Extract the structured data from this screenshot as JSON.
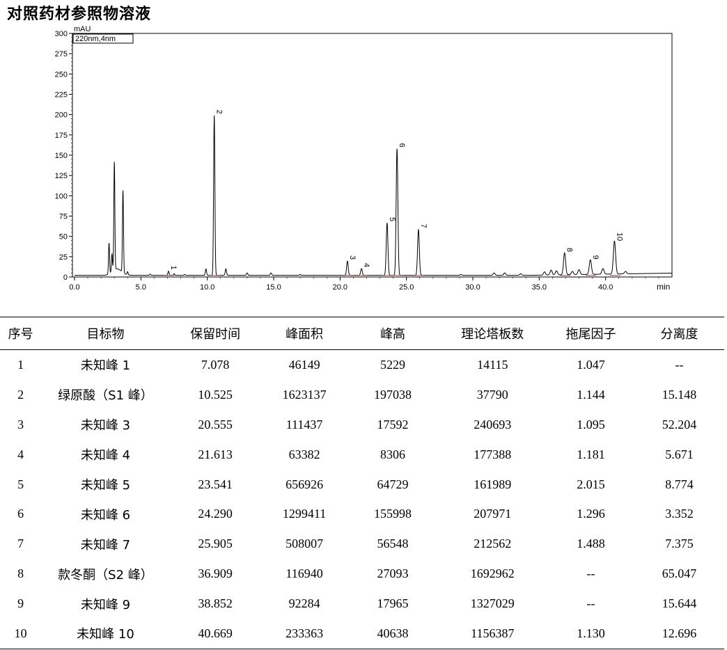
{
  "title": "对照药材参照物溶液",
  "chart_data": {
    "type": "line",
    "ylabel": "mAU",
    "xlabel": "min",
    "legend": "220nm,4nm",
    "xlim": [
      0.0,
      45.0
    ],
    "ylim": [
      0,
      300
    ],
    "xticks": [
      "0.0",
      "5.0",
      "10.0",
      "15.0",
      "20.0",
      "25.0",
      "30.0",
      "35.0",
      "40.0"
    ],
    "xtick_values": [
      0,
      5,
      10,
      15,
      20,
      25,
      30,
      35,
      40
    ],
    "yticks": [
      "0",
      "25",
      "50",
      "75",
      "100",
      "125",
      "150",
      "175",
      "200",
      "225",
      "250",
      "275",
      "300"
    ],
    "ytick_values": [
      0,
      25,
      50,
      75,
      100,
      125,
      150,
      175,
      200,
      225,
      250,
      275,
      300
    ],
    "baseline": 2,
    "labeled_peaks": [
      {
        "label": "1",
        "rt": 7.078,
        "height": 5.2
      },
      {
        "label": "2",
        "rt": 10.525,
        "height": 197.0
      },
      {
        "label": "3",
        "rt": 20.555,
        "height": 17.6
      },
      {
        "label": "4",
        "rt": 21.613,
        "height": 8.3
      },
      {
        "label": "5",
        "rt": 23.541,
        "height": 64.7
      },
      {
        "label": "6",
        "rt": 24.29,
        "height": 156.0
      },
      {
        "label": "7",
        "rt": 25.905,
        "height": 56.5
      },
      {
        "label": "8",
        "rt": 36.909,
        "height": 27.1
      },
      {
        "label": "9",
        "rt": 38.852,
        "height": 18.0
      },
      {
        "label": "10",
        "rt": 40.669,
        "height": 40.6
      }
    ],
    "other_peaks": [
      {
        "rt": 2.6,
        "height": 38
      },
      {
        "rt": 2.82,
        "height": 22
      },
      {
        "rt": 3.0,
        "height": 133
      },
      {
        "rt": 3.65,
        "height": 101
      },
      {
        "rt": 4.0,
        "height": 4
      },
      {
        "rt": 5.7,
        "height": 1.5
      },
      {
        "rt": 7.5,
        "height": 2
      },
      {
        "rt": 8.3,
        "height": 1
      },
      {
        "rt": 9.9,
        "height": 8
      },
      {
        "rt": 11.4,
        "height": 8
      },
      {
        "rt": 13.0,
        "height": 3
      },
      {
        "rt": 14.8,
        "height": 3
      },
      {
        "rt": 17.0,
        "height": 1
      },
      {
        "rt": 29.1,
        "height": 1
      },
      {
        "rt": 31.6,
        "height": 3
      },
      {
        "rt": 32.4,
        "height": 3
      },
      {
        "rt": 33.6,
        "height": 2
      },
      {
        "rt": 35.4,
        "height": 4
      },
      {
        "rt": 35.9,
        "height": 6
      },
      {
        "rt": 36.3,
        "height": 5
      },
      {
        "rt": 37.5,
        "height": 4
      },
      {
        "rt": 38.0,
        "height": 6
      },
      {
        "rt": 39.8,
        "height": 7
      },
      {
        "rt": 41.5,
        "height": 3
      }
    ]
  },
  "table": {
    "headers": [
      "序号",
      "目标物",
      "保留时间",
      "峰面积",
      "峰高",
      "理论塔板数",
      "拖尾因子",
      "分离度"
    ],
    "rows": [
      [
        "1",
        "未知峰 1",
        "7.078",
        "46149",
        "5229",
        "14115",
        "1.047",
        "--"
      ],
      [
        "2",
        "绿原酸（S1 峰）",
        "10.525",
        "1623137",
        "197038",
        "37790",
        "1.144",
        "15.148"
      ],
      [
        "3",
        "未知峰 3",
        "20.555",
        "111437",
        "17592",
        "240693",
        "1.095",
        "52.204"
      ],
      [
        "4",
        "未知峰 4",
        "21.613",
        "63382",
        "8306",
        "177388",
        "1.181",
        "5.671"
      ],
      [
        "5",
        "未知峰 5",
        "23.541",
        "656926",
        "64729",
        "161989",
        "2.015",
        "8.774"
      ],
      [
        "6",
        "未知峰 6",
        "24.290",
        "1299411",
        "155998",
        "207971",
        "1.296",
        "3.352"
      ],
      [
        "7",
        "未知峰 7",
        "25.905",
        "508007",
        "56548",
        "212562",
        "1.488",
        "7.375"
      ],
      [
        "8",
        "款冬酮（S2 峰）",
        "36.909",
        "116940",
        "27093",
        "1692962",
        "--",
        "65.047"
      ],
      [
        "9",
        "未知峰 9",
        "38.852",
        "92284",
        "17965",
        "1327029",
        "--",
        "15.644"
      ],
      [
        "10",
        "未知峰 10",
        "40.669",
        "233363",
        "40638",
        "1156387",
        "1.130",
        "12.696"
      ]
    ]
  }
}
